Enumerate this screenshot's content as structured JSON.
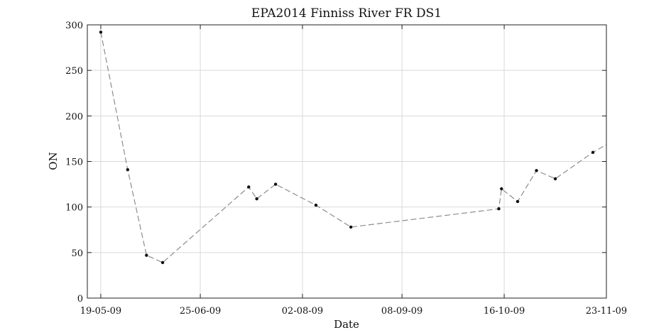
{
  "chart_data": {
    "type": "line",
    "title": "EPA2014 Finniss River FR DS1",
    "xlabel": "Date",
    "ylabel": "ON",
    "xlim": [
      "2009-05-14",
      "2009-11-23"
    ],
    "ylim": [
      0,
      300
    ],
    "x_ticks": [
      {
        "date": "2009-05-19",
        "label": "19-05-09"
      },
      {
        "date": "2009-06-25",
        "label": "25-06-09"
      },
      {
        "date": "2009-08-02",
        "label": "02-08-09"
      },
      {
        "date": "2009-09-08",
        "label": "08-09-09"
      },
      {
        "date": "2009-10-16",
        "label": "16-10-09"
      },
      {
        "date": "2009-11-23",
        "label": "23-11-09"
      }
    ],
    "y_ticks": [
      0,
      50,
      100,
      150,
      200,
      250,
      300
    ],
    "grid": true,
    "series": [
      {
        "line_style": "dashed",
        "line_color": "#8c8c8c",
        "marker_color": "#111111",
        "points": [
          {
            "x": "2009-05-19",
            "y": 292
          },
          {
            "x": "2009-05-29",
            "y": 141
          },
          {
            "x": "2009-06-05",
            "y": 47
          },
          {
            "x": "2009-06-11",
            "y": 39
          },
          {
            "x": "2009-07-13",
            "y": 122
          },
          {
            "x": "2009-07-16",
            "y": 109
          },
          {
            "x": "2009-07-23",
            "y": 125
          },
          {
            "x": "2009-08-07",
            "y": 102
          },
          {
            "x": "2009-08-20",
            "y": 78
          },
          {
            "x": "2009-10-14",
            "y": 98
          },
          {
            "x": "2009-10-15",
            "y": 120
          },
          {
            "x": "2009-10-21",
            "y": 106
          },
          {
            "x": "2009-10-28",
            "y": 140
          },
          {
            "x": "2009-11-04",
            "y": 131
          },
          {
            "x": "2009-11-18",
            "y": 160
          },
          {
            "x": "2009-11-25",
            "y": 172
          }
        ]
      }
    ]
  }
}
